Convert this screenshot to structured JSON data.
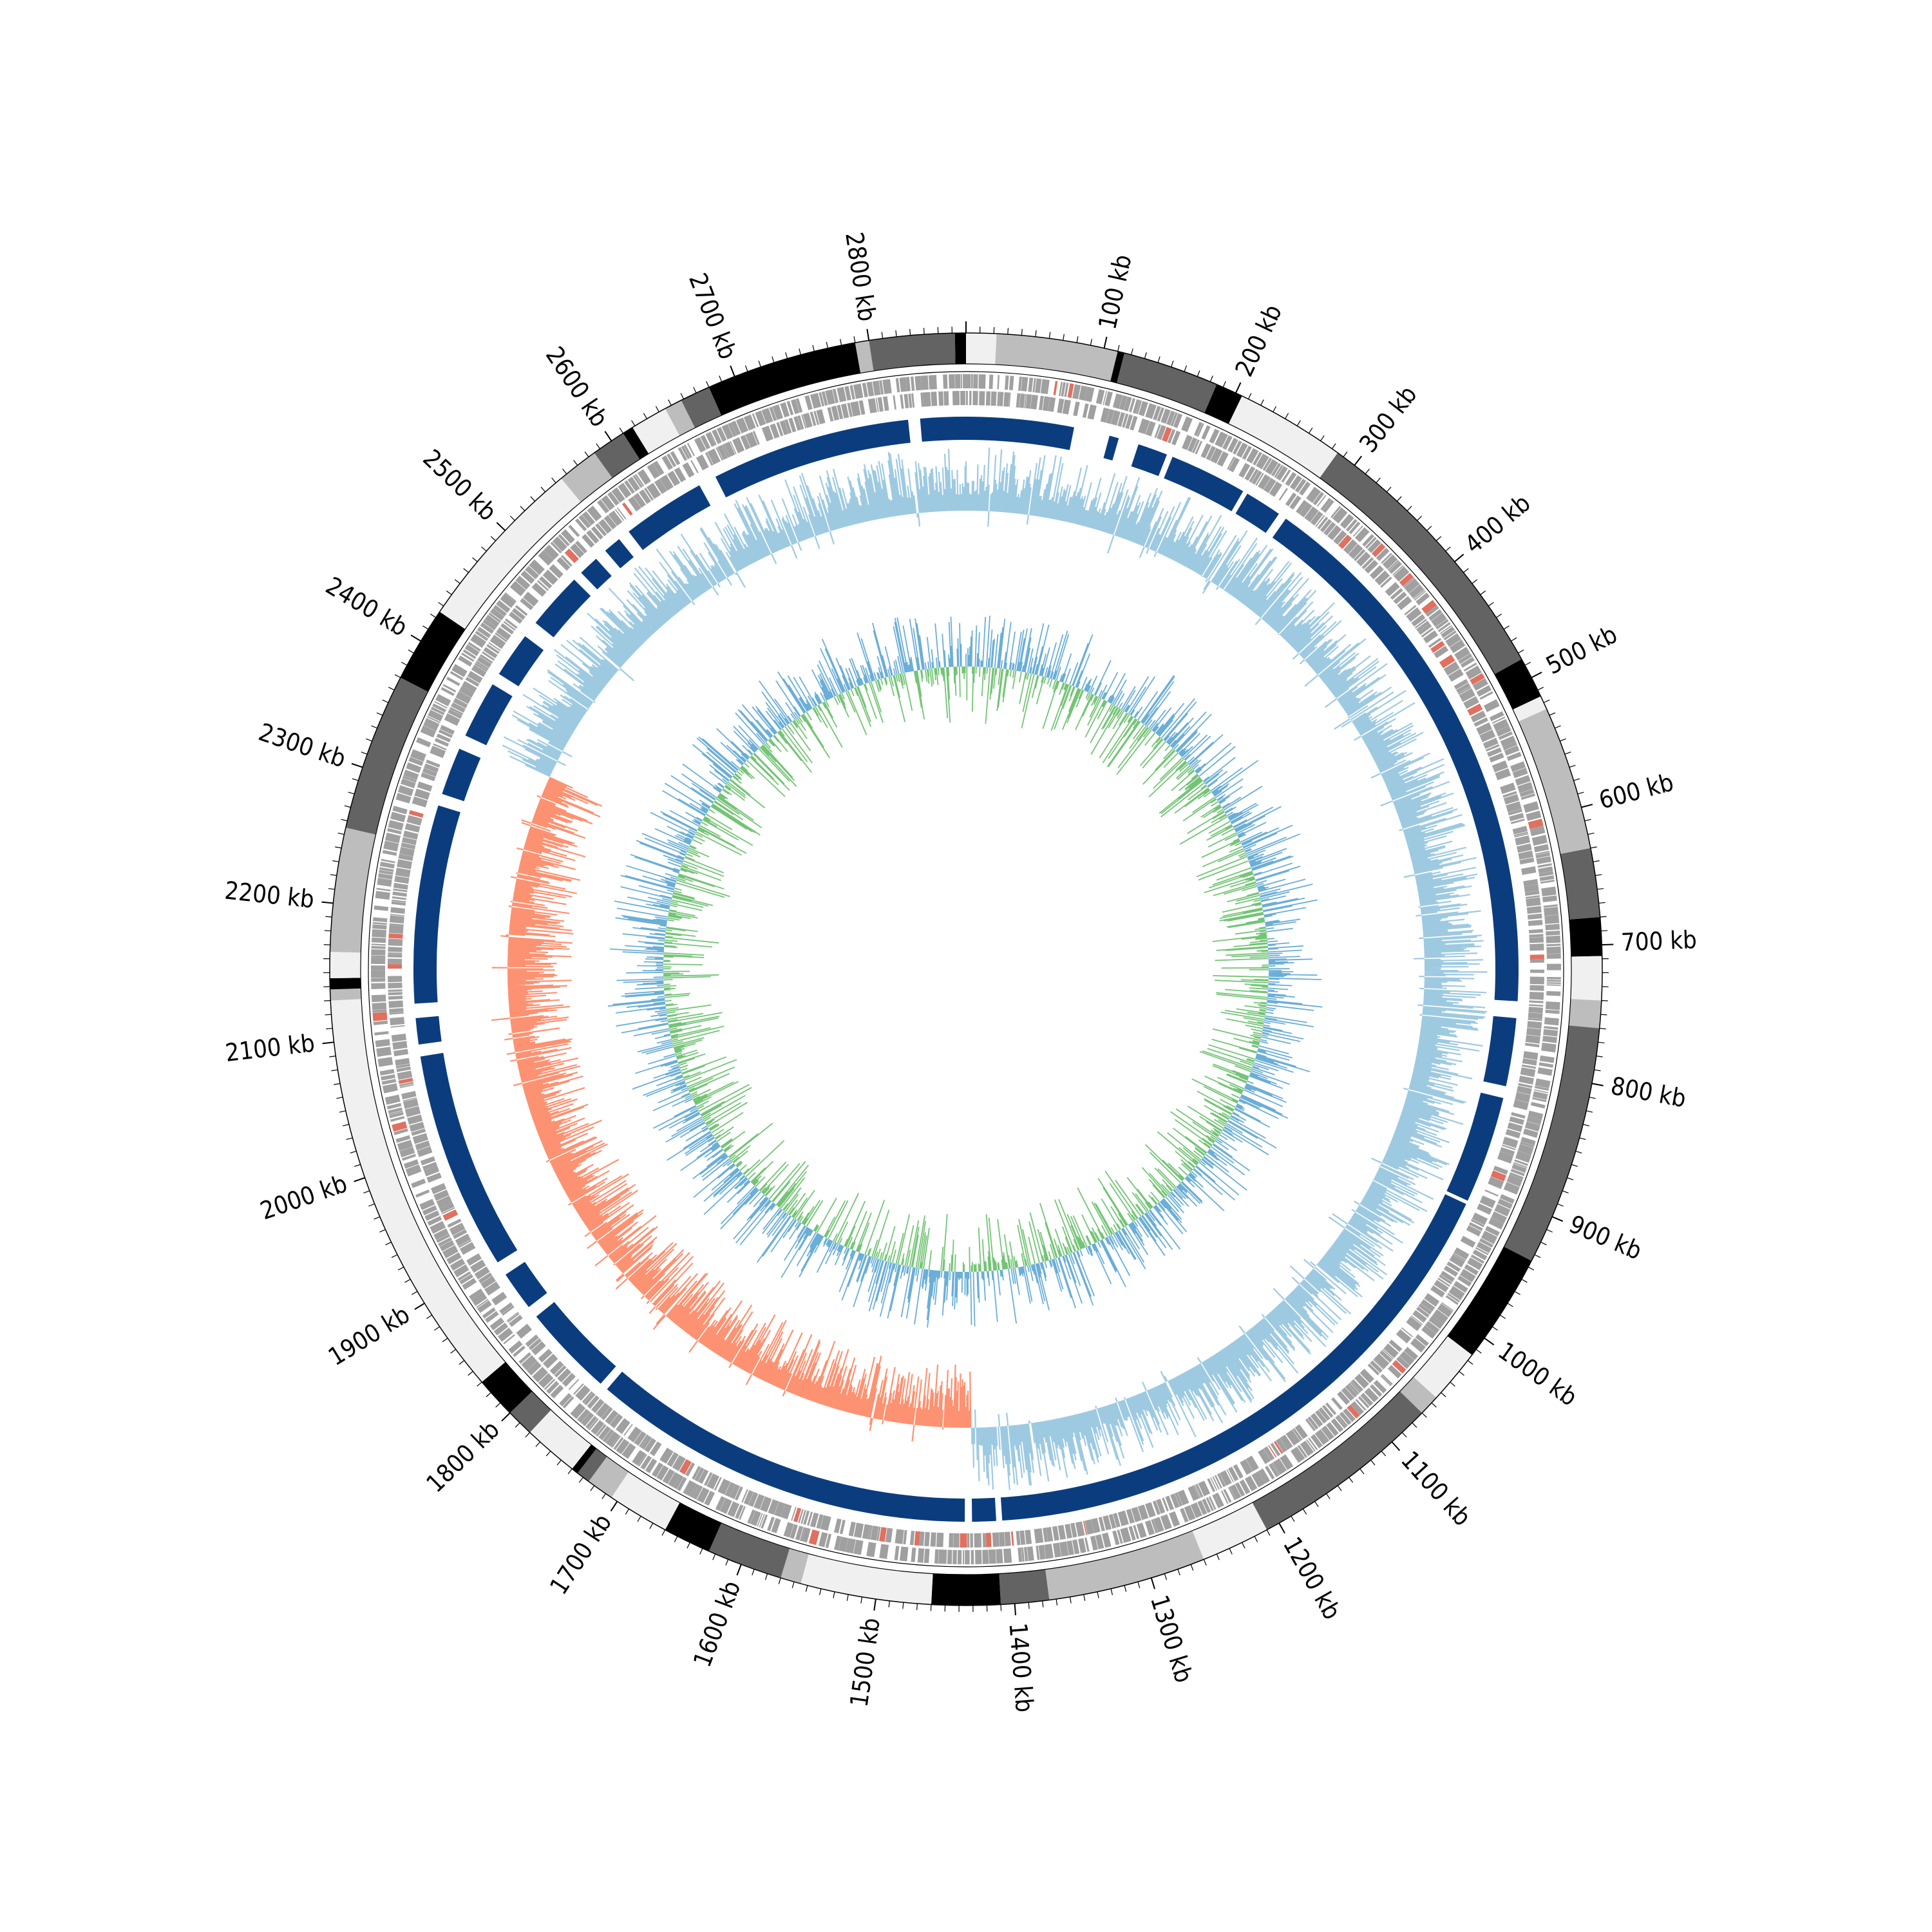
{
  "chart_data": {
    "type": "circular-genome",
    "genome_length_kb": 2870,
    "tick_labels": [
      {
        "kb": 100,
        "text": "100 kb"
      },
      {
        "kb": 200,
        "text": "200 kb"
      },
      {
        "kb": 300,
        "text": "300 kb"
      },
      {
        "kb": 400,
        "text": "400 kb"
      },
      {
        "kb": 500,
        "text": "500 kb"
      },
      {
        "kb": 600,
        "text": "600 kb"
      },
      {
        "kb": 700,
        "text": "700 kb"
      },
      {
        "kb": 800,
        "text": "800 kb"
      },
      {
        "kb": 900,
        "text": "900 kb"
      },
      {
        "kb": 1000,
        "text": "1000 kb"
      },
      {
        "kb": 1100,
        "text": "1100 kb"
      },
      {
        "kb": 1200,
        "text": "1200 kb"
      },
      {
        "kb": 1300,
        "text": "1300 kb"
      },
      {
        "kb": 1400,
        "text": "1400 kb"
      },
      {
        "kb": 1500,
        "text": "1500 kb"
      },
      {
        "kb": 1600,
        "text": "1600 kb"
      },
      {
        "kb": 1700,
        "text": "1700 kb"
      },
      {
        "kb": 1800,
        "text": "1800 kb"
      },
      {
        "kb": 1900,
        "text": "1900 kb"
      },
      {
        "kb": 2000,
        "text": "2000 kb"
      },
      {
        "kb": 2100,
        "text": "2100 kb"
      },
      {
        "kb": 2200,
        "text": "2200 kb"
      },
      {
        "kb": 2300,
        "text": "2300 kb"
      },
      {
        "kb": 2400,
        "text": "2400 kb"
      },
      {
        "kb": 2500,
        "text": "2500 kb"
      },
      {
        "kb": 2600,
        "text": "2600 kb"
      },
      {
        "kb": 2700,
        "text": "2700 kb"
      },
      {
        "kb": 2800,
        "text": "2800 kb"
      }
    ],
    "minor_tick_step_kb": 10,
    "outer_band_segments": [
      {
        "start": 0,
        "end": 22,
        "color": "#f0f0f0"
      },
      {
        "start": 22,
        "end": 110,
        "color": "#bdbdbd"
      },
      {
        "start": 110,
        "end": 115,
        "color": "#000000"
      },
      {
        "start": 115,
        "end": 185,
        "color": "#636363"
      },
      {
        "start": 185,
        "end": 205,
        "color": "#000000"
      },
      {
        "start": 205,
        "end": 285,
        "color": "#f0f0f0"
      },
      {
        "start": 285,
        "end": 485,
        "color": "#636363"
      },
      {
        "start": 485,
        "end": 515,
        "color": "#000000"
      },
      {
        "start": 515,
        "end": 525,
        "color": "#f0f0f0"
      },
      {
        "start": 525,
        "end": 630,
        "color": "#bdbdbd"
      },
      {
        "start": 630,
        "end": 680,
        "color": "#636363"
      },
      {
        "start": 680,
        "end": 708,
        "color": "#000000"
      },
      {
        "start": 708,
        "end": 740,
        "color": "#f0f0f0"
      },
      {
        "start": 740,
        "end": 760,
        "color": "#bdbdbd"
      },
      {
        "start": 760,
        "end": 935,
        "color": "#636363"
      },
      {
        "start": 935,
        "end": 1015,
        "color": "#000000"
      },
      {
        "start": 1015,
        "end": 1055,
        "color": "#f0f0f0"
      },
      {
        "start": 1055,
        "end": 1070,
        "color": "#bdbdbd"
      },
      {
        "start": 1070,
        "end": 1210,
        "color": "#636363"
      },
      {
        "start": 1210,
        "end": 1260,
        "color": "#f0f0f0"
      },
      {
        "start": 1260,
        "end": 1375,
        "color": "#bdbdbd"
      },
      {
        "start": 1375,
        "end": 1410,
        "color": "#636363"
      },
      {
        "start": 1410,
        "end": 1460,
        "color": "#000000"
      },
      {
        "start": 1460,
        "end": 1555,
        "color": "#f0f0f0"
      },
      {
        "start": 1555,
        "end": 1570,
        "color": "#bdbdbd"
      },
      {
        "start": 1570,
        "end": 1625,
        "color": "#636363"
      },
      {
        "start": 1625,
        "end": 1660,
        "color": "#000000"
      },
      {
        "start": 1660,
        "end": 1705,
        "color": "#f0f0f0"
      },
      {
        "start": 1705,
        "end": 1725,
        "color": "#bdbdbd"
      },
      {
        "start": 1725,
        "end": 1735,
        "color": "#636363"
      },
      {
        "start": 1735,
        "end": 1740,
        "color": "#000000"
      },
      {
        "start": 1740,
        "end": 1780,
        "color": "#f0f0f0"
      },
      {
        "start": 1780,
        "end": 1800,
        "color": "#636363"
      },
      {
        "start": 1800,
        "end": 1830,
        "color": "#000000"
      },
      {
        "start": 1830,
        "end": 2130,
        "color": "#f0f0f0"
      },
      {
        "start": 2130,
        "end": 2138,
        "color": "#bdbdbd"
      },
      {
        "start": 2138,
        "end": 2146,
        "color": "#000000"
      },
      {
        "start": 2146,
        "end": 2165,
        "color": "#f0f0f0"
      },
      {
        "start": 2165,
        "end": 2255,
        "color": "#bdbdbd"
      },
      {
        "start": 2255,
        "end": 2370,
        "color": "#636363"
      },
      {
        "start": 2370,
        "end": 2425,
        "color": "#000000"
      },
      {
        "start": 2425,
        "end": 2555,
        "color": "#f0f0f0"
      },
      {
        "start": 2555,
        "end": 2585,
        "color": "#bdbdbd"
      },
      {
        "start": 2585,
        "end": 2610,
        "color": "#636363"
      },
      {
        "start": 2610,
        "end": 2618,
        "color": "#000000"
      },
      {
        "start": 2618,
        "end": 2645,
        "color": "#f0f0f0"
      },
      {
        "start": 2645,
        "end": 2658,
        "color": "#bdbdbd"
      },
      {
        "start": 2658,
        "end": 2680,
        "color": "#636363"
      },
      {
        "start": 2680,
        "end": 2790,
        "color": "#000000"
      },
      {
        "start": 2790,
        "end": 2800,
        "color": "#bdbdbd"
      },
      {
        "start": 2800,
        "end": 2862,
        "color": "#636363"
      },
      {
        "start": 2862,
        "end": 2870,
        "color": "#000000"
      }
    ],
    "blue_blocks": [
      {
        "start": 0,
        "end": 90
      },
      {
        "start": 120,
        "end": 128
      },
      {
        "start": 145,
        "end": 170
      },
      {
        "start": 175,
        "end": 240
      },
      {
        "start": 244,
        "end": 275
      },
      {
        "start": 282,
        "end": 744
      },
      {
        "start": 758,
        "end": 815
      },
      {
        "start": 825,
        "end": 915
      },
      {
        "start": 918,
        "end": 1405
      },
      {
        "start": 1410,
        "end": 1430
      },
      {
        "start": 1436,
        "end": 1758
      },
      {
        "start": 1765,
        "end": 1842
      },
      {
        "start": 1852,
        "end": 1885
      },
      {
        "start": 1897,
        "end": 2080
      },
      {
        "start": 2090,
        "end": 2112
      },
      {
        "start": 2124,
        "end": 2290
      },
      {
        "start": 2300,
        "end": 2340
      },
      {
        "start": 2352,
        "end": 2400
      },
      {
        "start": 2410,
        "end": 2448
      },
      {
        "start": 2462,
        "end": 2510
      },
      {
        "start": 2518,
        "end": 2535
      },
      {
        "start": 2545,
        "end": 2560
      },
      {
        "start": 2570,
        "end": 2640
      },
      {
        "start": 2655,
        "end": 2822
      },
      {
        "start": 2832,
        "end": 2870
      }
    ],
    "gc_skew_sign_change_kb": [
      1430,
      2350
    ],
    "series": [
      {
        "name": "gc-skew-positive",
        "color": "#9ecae1"
      },
      {
        "name": "gc-skew-negative",
        "color": "#fc9272"
      },
      {
        "name": "gc-content-above",
        "color": "#6baed6"
      },
      {
        "name": "gc-content-below",
        "color": "#74c476"
      }
    ],
    "colors": {
      "feature_gray": "#a0a0a0",
      "feature_red": "#e07060",
      "block_blue": "#0b3d7e"
    }
  }
}
